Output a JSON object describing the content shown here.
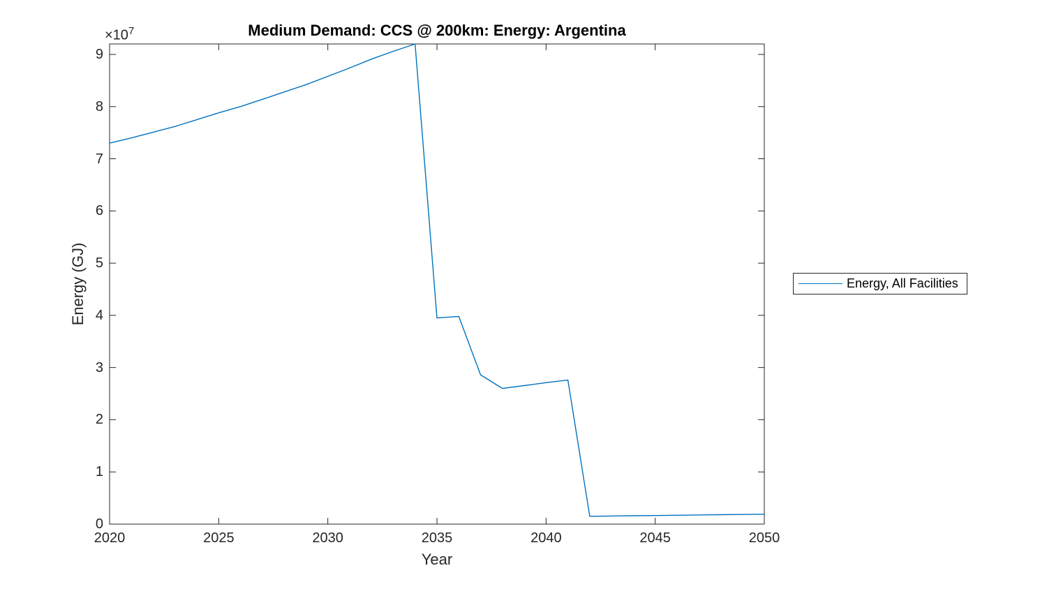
{
  "figure": {
    "title": "Medium Demand: CCS @ 200km: Energy: Argentina"
  },
  "axes": {
    "xlabel": "Year",
    "ylabel": "Energy (GJ)",
    "offset_text": "×10",
    "offset_exponent": "7",
    "x_ticks": [
      "2020",
      "2025",
      "2030",
      "2035",
      "2040",
      "2045",
      "2050"
    ],
    "y_ticks": [
      "0",
      "1",
      "2",
      "3",
      "4",
      "5",
      "6",
      "7",
      "8",
      "9"
    ],
    "axis_color": "#262626"
  },
  "legend": {
    "entries": [
      {
        "label": "Energy, All Facilities",
        "color": "#0072BD"
      }
    ]
  },
  "chart_data": {
    "type": "line",
    "title": "Medium Demand: CCS @ 200km: Energy: Argentina",
    "xlabel": "Year",
    "ylabel": "Energy (GJ)",
    "xlim": [
      2020,
      2050
    ],
    "ylim": [
      0,
      92000000
    ],
    "grid": false,
    "legend_position": "outside-right",
    "x_tick_values": [
      2020,
      2025,
      2030,
      2035,
      2040,
      2045,
      2050
    ],
    "y_tick_values": [
      0,
      10000000,
      20000000,
      30000000,
      40000000,
      50000000,
      60000000,
      70000000,
      80000000,
      90000000
    ],
    "series": [
      {
        "name": "Energy, All Facilities",
        "color": "#0072BD",
        "x": [
          2020,
          2021,
          2022,
          2023,
          2024,
          2025,
          2026,
          2027,
          2028,
          2029,
          2030,
          2031,
          2032,
          2033,
          2034,
          2035,
          2036,
          2037,
          2038,
          2039,
          2040,
          2041,
          2042,
          2043,
          2044,
          2045,
          2046,
          2047,
          2048,
          2049,
          2050
        ],
        "y": [
          73000000,
          74000000,
          75100000,
          76200000,
          77500000,
          78800000,
          80000000,
          81400000,
          82800000,
          84200000,
          85800000,
          87400000,
          89100000,
          90600000,
          92000000,
          39500000,
          39800000,
          28600000,
          26000000,
          26550000,
          27100000,
          27600000,
          1500000,
          1550000,
          1600000,
          1650000,
          1700000,
          1750000,
          1800000,
          1850000,
          1900000
        ]
      }
    ]
  }
}
